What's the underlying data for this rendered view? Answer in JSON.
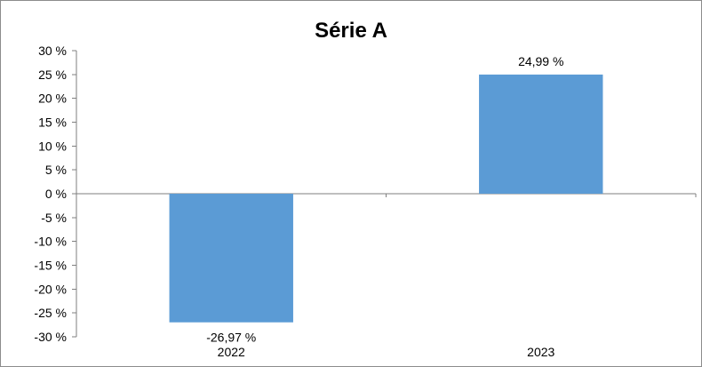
{
  "chart_data": {
    "type": "bar",
    "title": "Série A",
    "categories": [
      "2022",
      "2023"
    ],
    "values": [
      -26.97,
      24.99
    ],
    "value_labels": [
      "-26,97 %",
      "24,99 %"
    ],
    "ylim": [
      -30,
      30
    ],
    "yticks": [
      30,
      25,
      20,
      15,
      10,
      5,
      0,
      -5,
      -10,
      -15,
      -20,
      -25,
      -30
    ],
    "ytick_labels": [
      "30 %",
      "25 %",
      "20 %",
      "15 %",
      "10 %",
      "5 %",
      "0 %",
      "-5 %",
      "-10 %",
      "-15 %",
      "-20 %",
      "-25 %",
      "-30 %"
    ],
    "grid": false,
    "legend": "none",
    "bar_color": "#5b9bd5"
  }
}
